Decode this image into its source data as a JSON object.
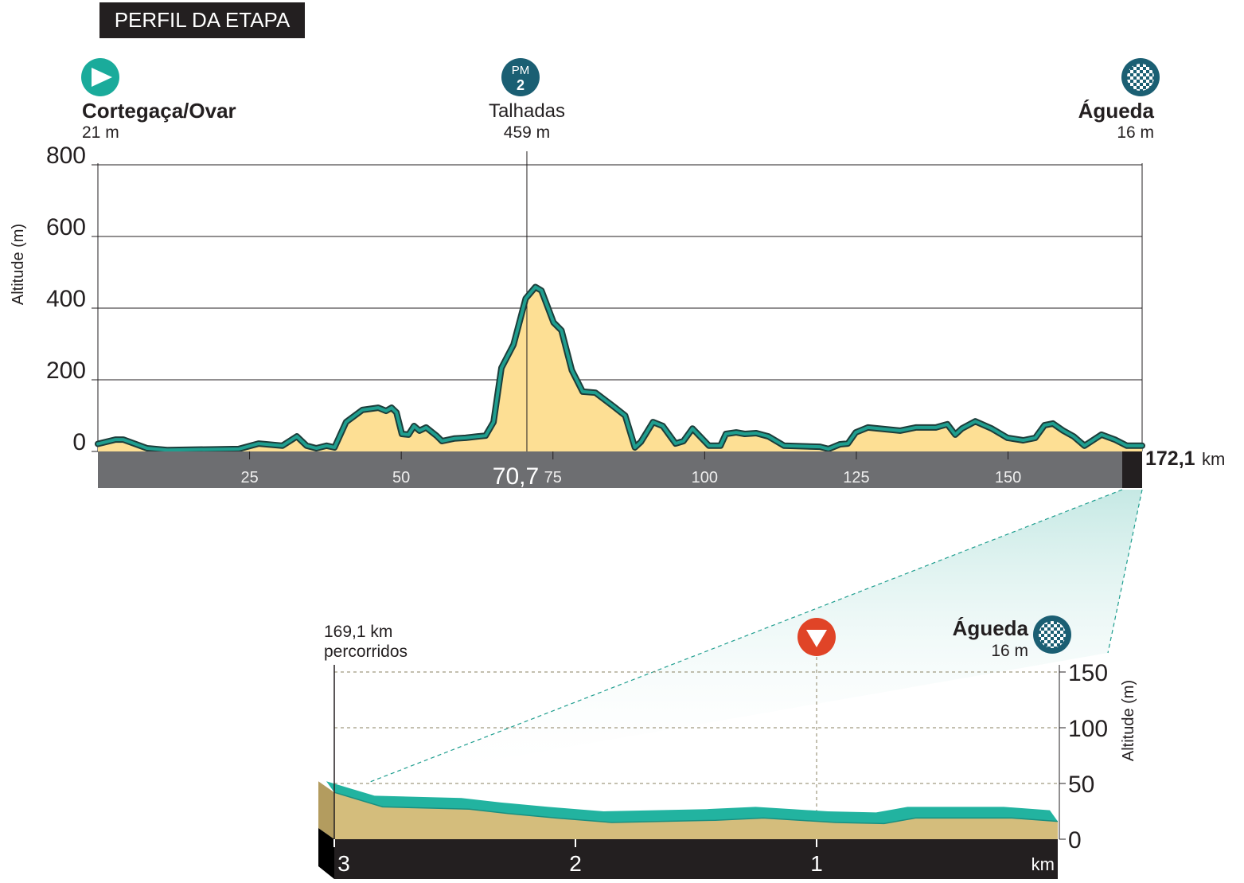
{
  "title": "PERFIL DA ETAPA",
  "chart_data": [
    {
      "type": "area",
      "ylabel": "Altitude (m)",
      "x": [
        0,
        2.9,
        4.2,
        8.1,
        11.4,
        23.2,
        26.5,
        30.4,
        32.8,
        34.4,
        36,
        37.7,
        39,
        40.9,
        43.6,
        46.2,
        47.5,
        48.4,
        49.2,
        50.1,
        51.2,
        52.1,
        53,
        54.1,
        55.8,
        56.7,
        58.7,
        60.6,
        62.6,
        63.9,
        65.2,
        66.5,
        68.5,
        70.5,
        72.1,
        73.1,
        75.1,
        76.4,
        78.1,
        79.9,
        82,
        84.9,
        86.9,
        88.5,
        89.5,
        91.5,
        93.1,
        95.2,
        96.5,
        98,
        100.7,
        102.6,
        103.5,
        105.2,
        106.6,
        108.5,
        110.5,
        113.1,
        119,
        120.4,
        122.3,
        123.6,
        124.9,
        126.9,
        132.2,
        134.8,
        138.1,
        140,
        141.3,
        142.4,
        144.6,
        147.3,
        149.9,
        152.5,
        154.5,
        156,
        157.4,
        159.1,
        160.8,
        162.6,
        165.4,
        167.6,
        169.6,
        172.1
      ],
      "values": [
        21,
        33,
        33,
        9,
        4,
        7,
        22,
        16,
        42,
        16,
        9,
        16,
        11,
        82,
        116,
        122,
        113,
        122,
        109,
        49,
        47,
        71,
        58,
        67,
        44,
        29,
        36,
        38,
        42,
        44,
        82,
        233,
        298,
        427,
        459,
        449,
        360,
        338,
        227,
        167,
        164,
        127,
        100,
        11,
        27,
        82,
        71,
        22,
        29,
        64,
        16,
        16,
        49,
        53,
        49,
        51,
        42,
        16,
        13,
        7,
        20,
        22,
        53,
        67,
        58,
        67,
        67,
        76,
        47,
        64,
        84,
        64,
        38,
        31,
        38,
        73,
        78,
        58,
        42,
        16,
        47,
        33,
        16,
        16
      ],
      "color": "#fddf94",
      "line_color": "#1f9e8f",
      "xlim": [
        0,
        172.1
      ],
      "ylim": [
        0,
        800
      ],
      "yticks": [
        0,
        200,
        400,
        600,
        800
      ],
      "xticks": [
        25,
        50,
        75,
        100,
        125,
        150
      ],
      "marker_tick": {
        "value": 70.7,
        "label": "70,7"
      },
      "end_tick": {
        "value": 172.1,
        "label": "172,1"
      },
      "xunit": "km",
      "places": [
        {
          "x": 0,
          "name": "Cortegaça/Ovar",
          "altitude": "21 m"
        },
        {
          "x": 70.7,
          "badge": "PM",
          "category": "2",
          "name": "Talhadas",
          "altitude": "459 m"
        },
        {
          "x": 172.1,
          "name": "Águeda",
          "altitude": "16 m"
        }
      ]
    },
    {
      "type": "area",
      "ylabel": "Altitude (m)",
      "x": [
        3,
        2.8,
        2.44,
        2.28,
        2.08,
        1.85,
        1.42,
        1.22,
        0.92,
        0.72,
        0.59,
        0.19,
        0
      ],
      "values": [
        42,
        29,
        27,
        23,
        19,
        15,
        17,
        19,
        15,
        14,
        19,
        19,
        16
      ],
      "color": "#d4bd7c",
      "band_color": "#22b3a0",
      "xlim": [
        3,
        0
      ],
      "ylim": [
        0,
        150
      ],
      "yticks": [
        0,
        50,
        100,
        150
      ],
      "xticks": [
        3,
        2,
        1
      ],
      "xunit": "km",
      "start_label": [
        "169,1 km",
        "percorridos"
      ],
      "flamme_rouge": 1,
      "finish": {
        "name": "Águeda",
        "altitude": "16 m"
      }
    }
  ]
}
